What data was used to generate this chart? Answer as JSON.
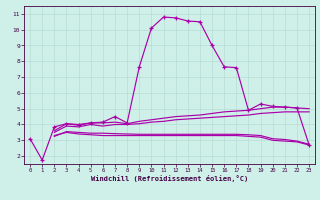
{
  "xlabel": "Windchill (Refroidissement éolien,°C)",
  "bg_color": "#cff0e8",
  "grid_color": "#b8ddd4",
  "line_color": "#aa00aa",
  "xlim": [
    -0.5,
    23.5
  ],
  "ylim": [
    1.5,
    11.5
  ],
  "xticks": [
    0,
    1,
    2,
    3,
    4,
    5,
    6,
    7,
    8,
    9,
    10,
    11,
    12,
    13,
    14,
    15,
    16,
    17,
    18,
    19,
    20,
    21,
    22,
    23
  ],
  "yticks": [
    2,
    3,
    4,
    5,
    6,
    7,
    8,
    9,
    10,
    11
  ],
  "line1_x": [
    0,
    1,
    2,
    3,
    4,
    5,
    6,
    7,
    8,
    9,
    10,
    11,
    12,
    13,
    14,
    15,
    16,
    17,
    18,
    19,
    20,
    21,
    22,
    23
  ],
  "line1_y": [
    3.1,
    1.75,
    3.85,
    4.05,
    3.95,
    4.1,
    4.15,
    4.5,
    4.1,
    7.65,
    10.1,
    10.8,
    10.75,
    10.55,
    10.5,
    9.0,
    7.65,
    7.6,
    4.9,
    5.3,
    5.15,
    5.1,
    5.05,
    2.7
  ],
  "line2_x": [
    2,
    3,
    4,
    5,
    6,
    7,
    8,
    9,
    10,
    11,
    12,
    13,
    14,
    15,
    16,
    17,
    18,
    19,
    20,
    21,
    22,
    23
  ],
  "line2_y": [
    3.6,
    4.05,
    4.0,
    4.1,
    4.1,
    4.15,
    4.05,
    4.2,
    4.3,
    4.4,
    4.5,
    4.55,
    4.6,
    4.7,
    4.8,
    4.85,
    4.9,
    5.0,
    5.1,
    5.1,
    5.05,
    5.0
  ],
  "line3_x": [
    2,
    3,
    4,
    5,
    6,
    7,
    8,
    9,
    10,
    11,
    12,
    13,
    14,
    15,
    16,
    17,
    18,
    19,
    20,
    21,
    22,
    23
  ],
  "line3_y": [
    3.5,
    3.9,
    3.85,
    4.0,
    3.9,
    4.0,
    4.0,
    4.05,
    4.15,
    4.2,
    4.3,
    4.35,
    4.4,
    4.45,
    4.5,
    4.55,
    4.6,
    4.7,
    4.75,
    4.8,
    4.8,
    4.8
  ],
  "line4_x": [
    2,
    3,
    4,
    5,
    6,
    7,
    8,
    9,
    10,
    11,
    12,
    13,
    14,
    15,
    16,
    17,
    18,
    19,
    20,
    21,
    22,
    23
  ],
  "line4_y": [
    3.3,
    3.5,
    3.4,
    3.35,
    3.3,
    3.3,
    3.3,
    3.3,
    3.3,
    3.3,
    3.3,
    3.3,
    3.3,
    3.3,
    3.3,
    3.3,
    3.25,
    3.2,
    3.0,
    2.95,
    2.9,
    2.7
  ],
  "line5_x": [
    2,
    3,
    4,
    5,
    6,
    7,
    8,
    9,
    10,
    11,
    12,
    13,
    14,
    15,
    16,
    17,
    18,
    19,
    20,
    21,
    22,
    23
  ],
  "line5_y": [
    3.25,
    3.55,
    3.5,
    3.45,
    3.45,
    3.42,
    3.4,
    3.38,
    3.38,
    3.38,
    3.38,
    3.38,
    3.38,
    3.38,
    3.38,
    3.38,
    3.35,
    3.3,
    3.1,
    3.05,
    2.95,
    2.75
  ]
}
